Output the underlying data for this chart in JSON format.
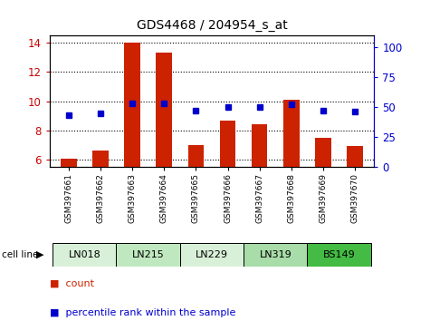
{
  "title": "GDS4468 / 204954_s_at",
  "samples": [
    "GSM397661",
    "GSM397662",
    "GSM397663",
    "GSM397664",
    "GSM397665",
    "GSM397666",
    "GSM397667",
    "GSM397668",
    "GSM397669",
    "GSM397670"
  ],
  "count_values": [
    6.05,
    6.6,
    14.0,
    13.3,
    7.0,
    8.65,
    8.45,
    10.1,
    7.5,
    6.95
  ],
  "percentile_values": [
    43,
    45,
    53,
    53,
    47,
    50,
    50,
    52,
    47,
    46
  ],
  "cell_lines": [
    {
      "label": "LN018",
      "start": 0,
      "end": 2,
      "color": "#d8f0d8"
    },
    {
      "label": "LN215",
      "start": 2,
      "end": 4,
      "color": "#c0e8c0"
    },
    {
      "label": "LN229",
      "start": 4,
      "end": 6,
      "color": "#d8f0d8"
    },
    {
      "label": "LN319",
      "start": 6,
      "end": 8,
      "color": "#a8dca8"
    },
    {
      "label": "BS149",
      "start": 8,
      "end": 10,
      "color": "#44bb44"
    }
  ],
  "ylim_left": [
    5.5,
    14.5
  ],
  "ylim_right": [
    0,
    110
  ],
  "yticks_left": [
    6,
    8,
    10,
    12,
    14
  ],
  "yticks_right": [
    0,
    25,
    50,
    75,
    100
  ],
  "bar_color": "#cc2200",
  "dot_color": "#0000cc",
  "bar_bottom": 5.5,
  "legend_count_label": "count",
  "legend_pct_label": "percentile rank within the sample",
  "grid_style": "dotted",
  "right_axis_color": "#0000cc",
  "left_axis_color": "#cc0000"
}
